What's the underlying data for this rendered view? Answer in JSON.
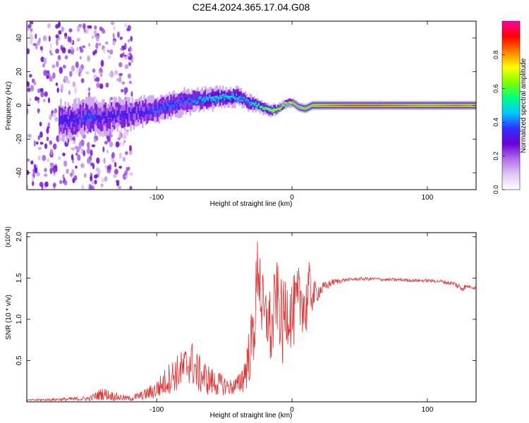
{
  "title": "C2E4.2024.365.17.04.G08",
  "chart_data": [
    {
      "type": "heatmap",
      "name": "spectrogram",
      "xlabel": "Height of straight line (km)",
      "ylabel": "Frequency (Hz)",
      "xlim": [
        -196,
        136
      ],
      "ylim": [
        -50,
        50
      ],
      "x_ticks": [
        -100,
        0,
        100
      ],
      "x_tick_labels": [
        "-100",
        "0",
        "100"
      ],
      "y_ticks": [
        -40,
        -20,
        0,
        20,
        40
      ],
      "y_tick_labels": [
        "-40",
        "-20",
        "0",
        "20",
        "40"
      ],
      "colorbar": {
        "label": "Normalized spectral amplitude",
        "range": [
          0,
          1
        ],
        "ticks": [
          0.0,
          0.2,
          0.4,
          0.6,
          0.8
        ],
        "tick_labels": [
          "0.0",
          "0.2",
          "0.4",
          "0.6",
          "0.8"
        ],
        "colors": [
          "#ffffff",
          "#e0c8f4",
          "#b06ee8",
          "#6a00d8",
          "#3030ff",
          "#00c8ff",
          "#00ff80",
          "#80ff00",
          "#ffff00",
          "#ff8000",
          "#ff0000",
          "#ff00a0"
        ]
      },
      "ridge": {
        "x": [
          -172,
          -160,
          -150,
          -140,
          -130,
          -120,
          -110,
          -100,
          -90,
          -80,
          -70,
          -60,
          -50,
          -40,
          -35,
          -30,
          -25,
          -20,
          -15,
          -10,
          -5,
          0,
          5,
          10,
          15,
          20,
          40,
          60,
          80,
          100,
          120,
          136
        ],
        "freq": [
          -10,
          -8,
          -7,
          -7,
          -6,
          -5,
          -4,
          -3,
          0,
          2,
          3,
          4,
          5,
          5,
          3,
          1,
          0,
          -2,
          -3,
          -2,
          1,
          2,
          -1,
          -2,
          0,
          0,
          0,
          0,
          0,
          0,
          0,
          0
        ],
        "amplitude": [
          0.35,
          0.35,
          0.4,
          0.35,
          0.35,
          0.35,
          0.35,
          0.4,
          0.4,
          0.4,
          0.45,
          0.5,
          0.5,
          0.5,
          0.45,
          0.5,
          0.6,
          0.65,
          0.7,
          0.75,
          0.85,
          0.85,
          0.85,
          0.8,
          0.8,
          0.85,
          0.9,
          0.9,
          0.88,
          0.85,
          0.88,
          0.85
        ],
        "spread_hz": [
          12,
          11,
          11,
          10,
          10,
          9,
          9,
          8,
          8,
          8,
          7,
          7,
          6,
          6,
          5,
          5,
          4,
          4,
          4,
          3,
          3,
          3,
          3,
          3,
          3,
          3,
          3,
          3,
          3,
          3,
          3,
          3
        ]
      },
      "noise_region": {
        "x_range": [
          -196,
          -118
        ],
        "freq_range": [
          -50,
          50
        ]
      }
    },
    {
      "type": "line",
      "name": "snr",
      "xlabel": "Height of straight line (km)",
      "ylabel": "SNR (10 * v/v)",
      "y_multiplier": "(x10^4)",
      "xlim": [
        -196,
        136
      ],
      "ylim": [
        0,
        2.05
      ],
      "x_ticks": [
        -100,
        0,
        100
      ],
      "x_tick_labels": [
        "-100",
        "0",
        "100"
      ],
      "y_ticks": [
        0.5,
        1.0,
        1.5,
        2.0
      ],
      "y_tick_labels": [
        "0.5",
        "1.0",
        "1.5",
        "2.0"
      ],
      "color": "#e83030",
      "series": {
        "name": "SNR",
        "x": [
          -196,
          -170,
          -150,
          -140,
          -130,
          -120,
          -110,
          -100,
          -90,
          -80,
          -75,
          -70,
          -60,
          -50,
          -45,
          -40,
          -35,
          -32,
          -30,
          -28,
          -25,
          -22,
          -20,
          -18,
          -15,
          -12,
          -10,
          -7,
          -5,
          -3,
          0,
          5,
          8,
          10,
          12,
          15,
          20,
          25,
          30,
          40,
          50,
          60,
          70,
          80,
          90,
          100,
          110,
          120,
          125,
          130,
          136
        ],
        "y": [
          0.02,
          0.03,
          0.04,
          0.1,
          0.06,
          0.04,
          0.08,
          0.15,
          0.3,
          0.4,
          0.5,
          0.35,
          0.25,
          0.2,
          0.18,
          0.2,
          0.35,
          0.55,
          0.7,
          0.9,
          1.7,
          1.1,
          0.95,
          1.05,
          0.8,
          1.3,
          1.2,
          0.9,
          1.1,
          1.15,
          1.05,
          1.2,
          1.3,
          1.05,
          1.4,
          1.28,
          1.35,
          1.4,
          1.45,
          1.48,
          1.49,
          1.49,
          1.48,
          1.48,
          1.47,
          1.47,
          1.46,
          1.43,
          1.38,
          1.4,
          1.38
        ],
        "jitter": [
          0.01,
          0.02,
          0.03,
          0.08,
          0.05,
          0.03,
          0.06,
          0.12,
          0.2,
          0.25,
          0.28,
          0.25,
          0.18,
          0.12,
          0.1,
          0.12,
          0.25,
          0.35,
          0.4,
          0.45,
          0.5,
          0.5,
          0.45,
          0.45,
          0.5,
          0.45,
          0.45,
          0.5,
          0.5,
          0.45,
          0.45,
          0.45,
          0.45,
          0.45,
          0.35,
          0.2,
          0.1,
          0.06,
          0.04,
          0.02,
          0.02,
          0.02,
          0.02,
          0.02,
          0.02,
          0.02,
          0.02,
          0.03,
          0.05,
          0.02,
          0.02
        ]
      }
    }
  ]
}
